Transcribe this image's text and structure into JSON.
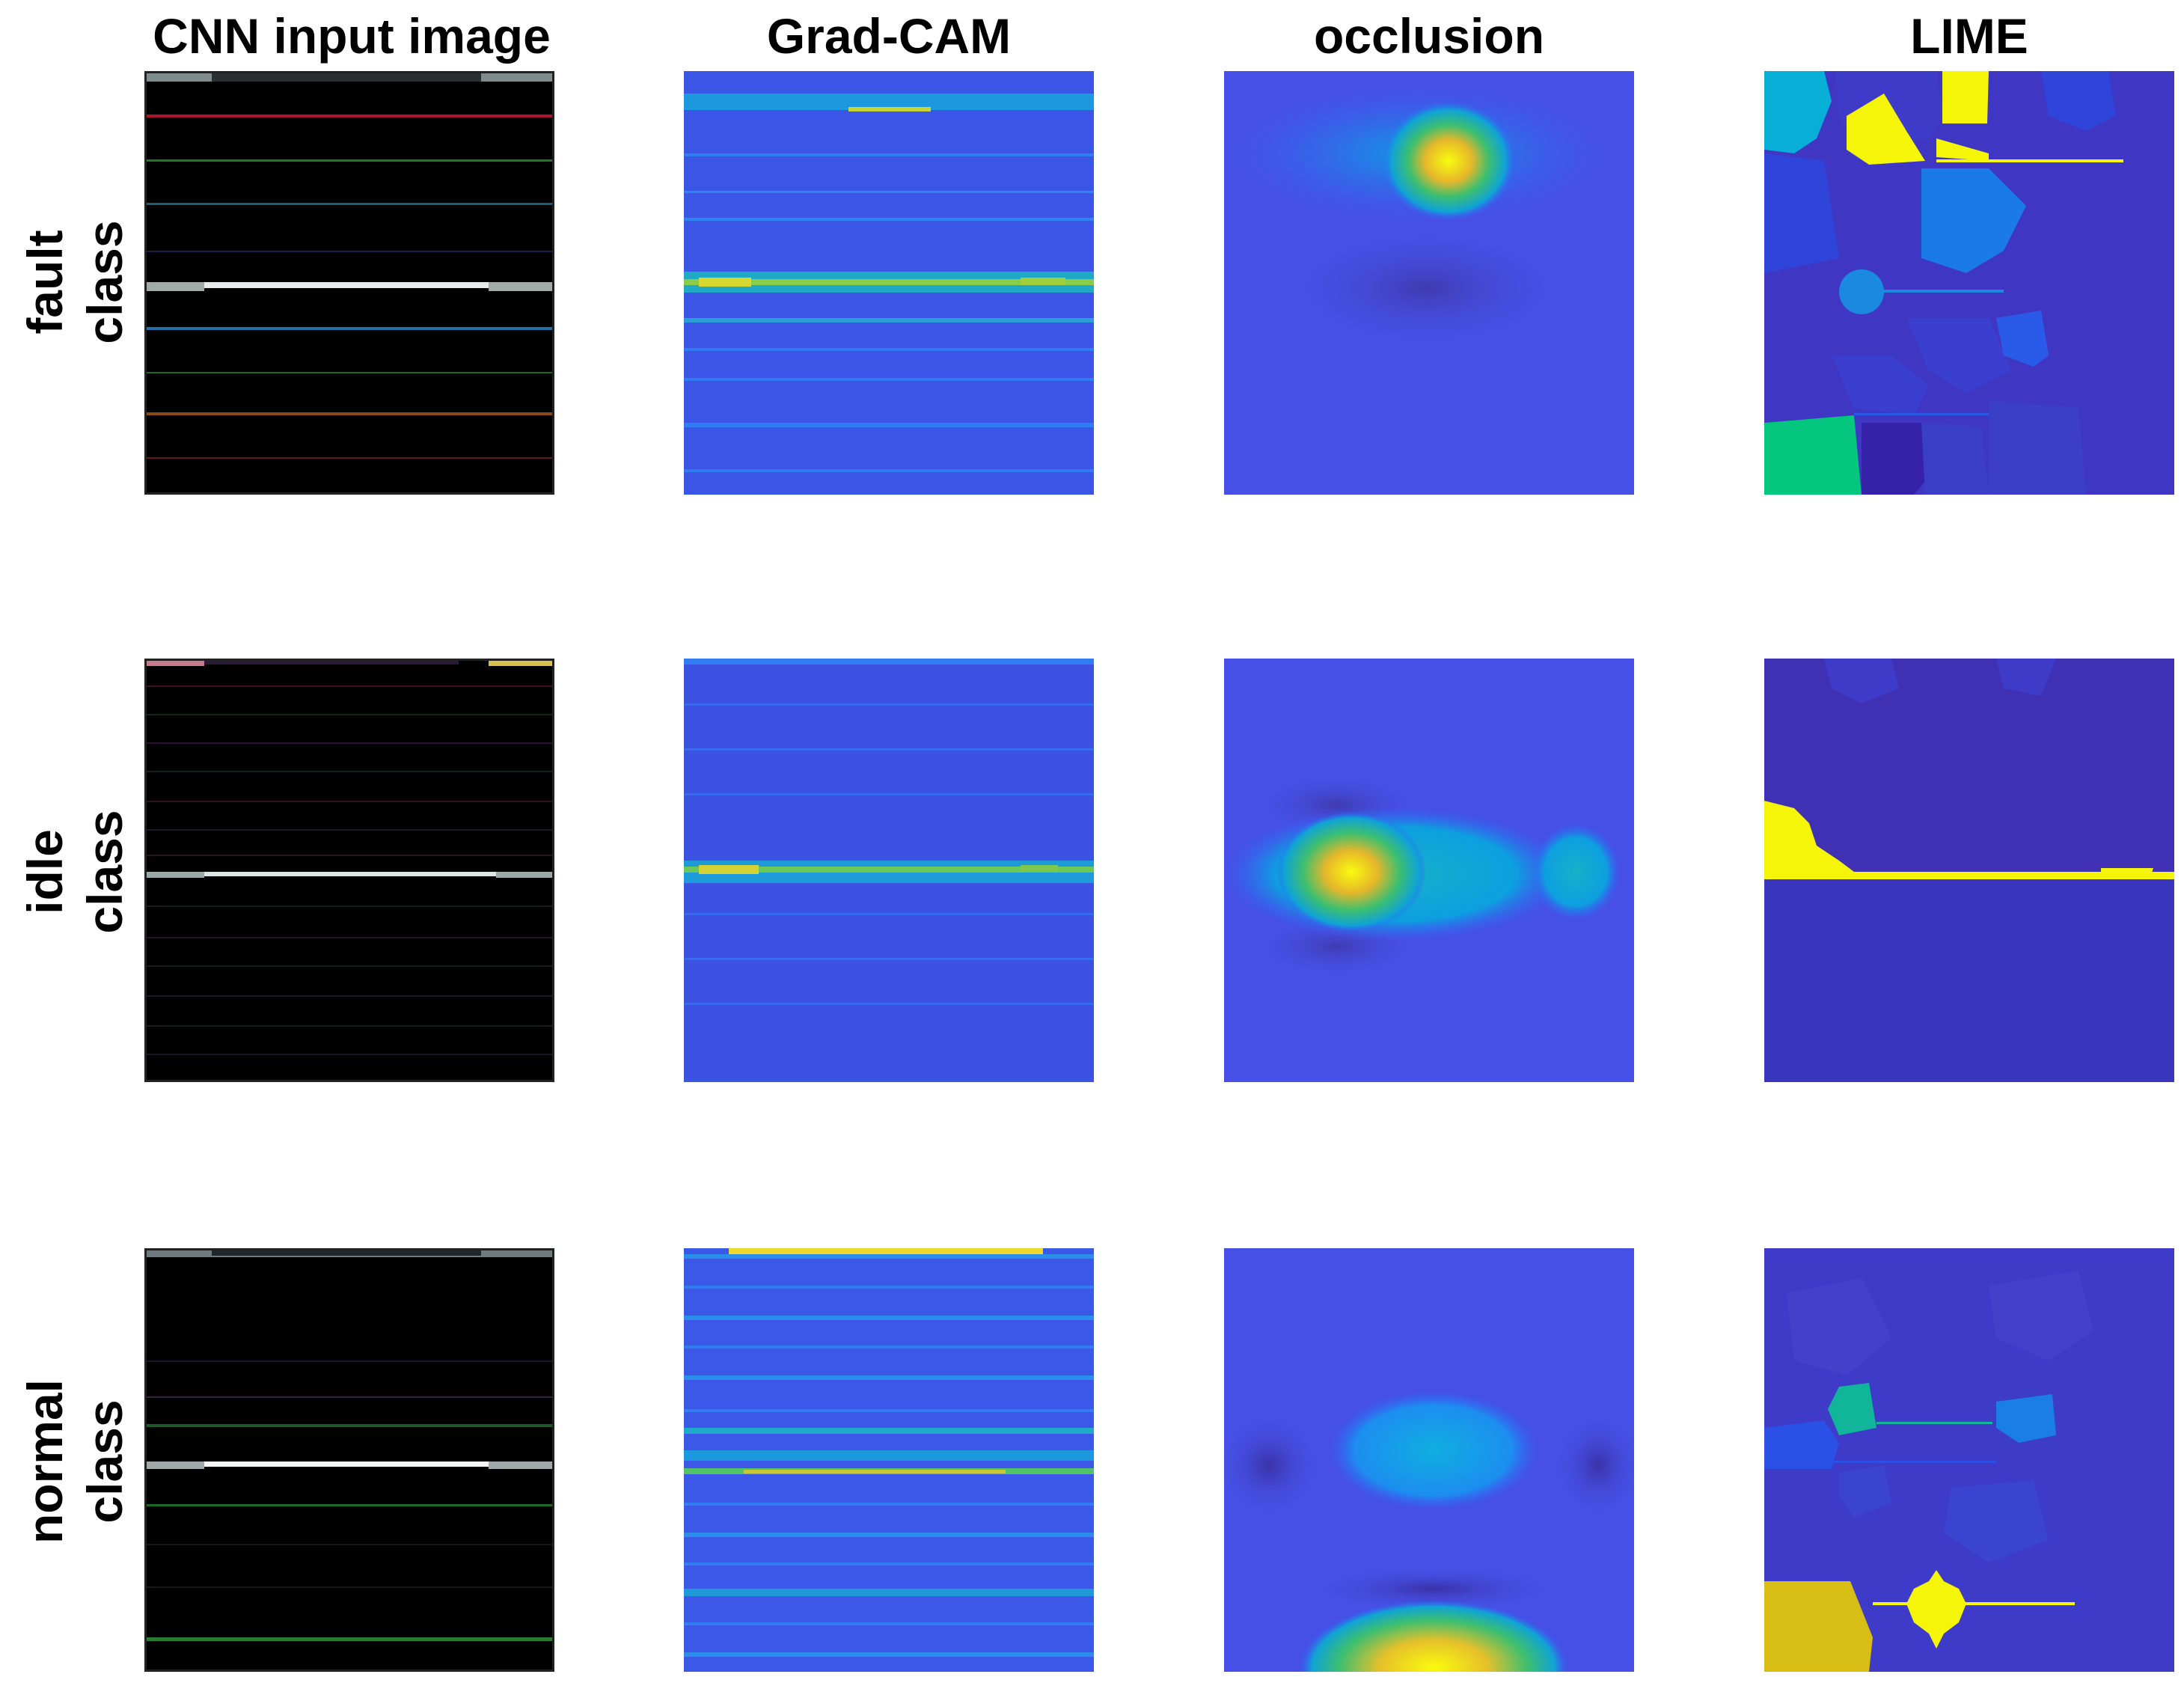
{
  "columns": [
    "CNN input image",
    "Grad-CAM",
    "occlusion",
    "LIME"
  ],
  "rows": [
    {
      "line1": "fault",
      "line2": "class"
    },
    {
      "line1": "idle",
      "line2": "class"
    },
    {
      "line1": "normal",
      "line2": "class"
    }
  ],
  "colormap": "parula",
  "colors": {
    "parula_low": "#3e26a8",
    "parula_mid": "#2f66f7",
    "parula_cyan": "#00b6cf",
    "parula_green": "#2ab779",
    "parula_high": "#f9fb0e",
    "input_background": "#000000"
  }
}
